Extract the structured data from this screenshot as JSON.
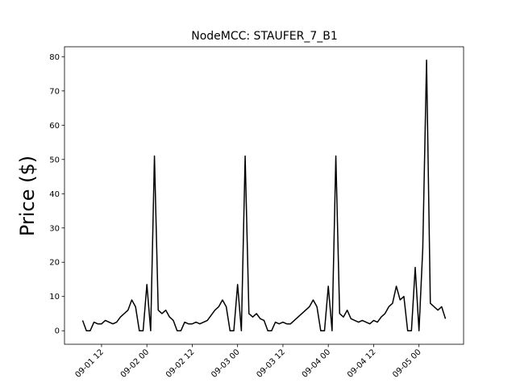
{
  "chart_data": {
    "type": "line",
    "title": "NodeMCC: STAUFER_7_B1",
    "ylabel": "Price ($)",
    "x": [
      "09-01 07:00",
      "09-01 08:00",
      "09-01 09:00",
      "09-01 10:00",
      "09-01 11:00",
      "09-01 12:00",
      "09-01 13:00",
      "09-01 14:00",
      "09-01 15:00",
      "09-01 16:00",
      "09-01 17:00",
      "09-01 18:00",
      "09-01 19:00",
      "09-01 20:00",
      "09-01 21:00",
      "09-01 22:00",
      "09-01 23:00",
      "09-02 00:00",
      "09-02 01:00",
      "09-02 02:00",
      "09-02 03:00",
      "09-02 04:00",
      "09-02 05:00",
      "09-02 06:00",
      "09-02 07:00",
      "09-02 08:00",
      "09-02 09:00",
      "09-02 10:00",
      "09-02 11:00",
      "09-02 12:00",
      "09-02 13:00",
      "09-02 14:00",
      "09-02 15:00",
      "09-02 16:00",
      "09-02 17:00",
      "09-02 18:00",
      "09-02 19:00",
      "09-02 20:00",
      "09-02 21:00",
      "09-02 22:00",
      "09-02 23:00",
      "09-03 00:00",
      "09-03 01:00",
      "09-03 02:00",
      "09-03 03:00",
      "09-03 04:00",
      "09-03 05:00",
      "09-03 06:00",
      "09-03 07:00",
      "09-03 08:00",
      "09-03 09:00",
      "09-03 10:00",
      "09-03 11:00",
      "09-03 12:00",
      "09-03 13:00",
      "09-03 14:00",
      "09-03 15:00",
      "09-03 16:00",
      "09-03 17:00",
      "09-03 18:00",
      "09-03 19:00",
      "09-03 20:00",
      "09-03 21:00",
      "09-03 22:00",
      "09-03 23:00",
      "09-04 00:00",
      "09-04 01:00",
      "09-04 02:00",
      "09-04 03:00",
      "09-04 04:00",
      "09-04 05:00",
      "09-04 06:00",
      "09-04 07:00",
      "09-04 08:00",
      "09-04 09:00",
      "09-04 10:00",
      "09-04 11:00",
      "09-04 12:00",
      "09-04 13:00",
      "09-04 14:00",
      "09-04 15:00",
      "09-04 16:00",
      "09-04 17:00",
      "09-04 18:00",
      "09-04 19:00",
      "09-04 20:00",
      "09-04 21:00",
      "09-04 22:00",
      "09-04 23:00",
      "09-05 00:00",
      "09-05 01:00",
      "09-05 02:00",
      "09-05 03:00",
      "09-05 04:00",
      "09-05 05:00",
      "09-05 06:00",
      "09-05 07:00"
    ],
    "series": [
      {
        "color": "#000000",
        "values": [
          3,
          0,
          0,
          2.5,
          2,
          2,
          3,
          2.5,
          2,
          2.5,
          4,
          5,
          6,
          9,
          7,
          0,
          0,
          13.5,
          0,
          51,
          6,
          5,
          6,
          4,
          3,
          0,
          0,
          2.5,
          2,
          2,
          2.5,
          2,
          2.5,
          3,
          4.5,
          6,
          7,
          9,
          7,
          0,
          0,
          13.5,
          0,
          51,
          5,
          4,
          5,
          3.5,
          3,
          0,
          0,
          2.5,
          2,
          2.5,
          2,
          2,
          3,
          4,
          5,
          6,
          7,
          9,
          7,
          0,
          0,
          13,
          0,
          51,
          5,
          4,
          6,
          3.5,
          3,
          2.5,
          3,
          2.5,
          2,
          3,
          2.5,
          4,
          5,
          7,
          8,
          13,
          9,
          10,
          0,
          0,
          18.5,
          0,
          24,
          79,
          8,
          7,
          6,
          7,
          3.5
        ]
      }
    ],
    "xlim": [
      "09-01 02:12",
      "09-05 11:48"
    ],
    "xticks": [
      {
        "value": "09-01 12:00",
        "label": "09-01 12"
      },
      {
        "value": "09-02 00:00",
        "label": "09-02 00"
      },
      {
        "value": "09-02 12:00",
        "label": "09-02 12"
      },
      {
        "value": "09-03 00:00",
        "label": "09-03 00"
      },
      {
        "value": "09-03 12:00",
        "label": "09-03 12"
      },
      {
        "value": "09-04 00:00",
        "label": "09-04 00"
      },
      {
        "value": "09-04 12:00",
        "label": "09-04 12"
      },
      {
        "value": "09-05 00:00",
        "label": "09-05 00"
      }
    ],
    "ylim": [
      -3.95,
      82.9
    ],
    "yticks": [
      0,
      10,
      20,
      30,
      40,
      50,
      60,
      70,
      80
    ]
  }
}
